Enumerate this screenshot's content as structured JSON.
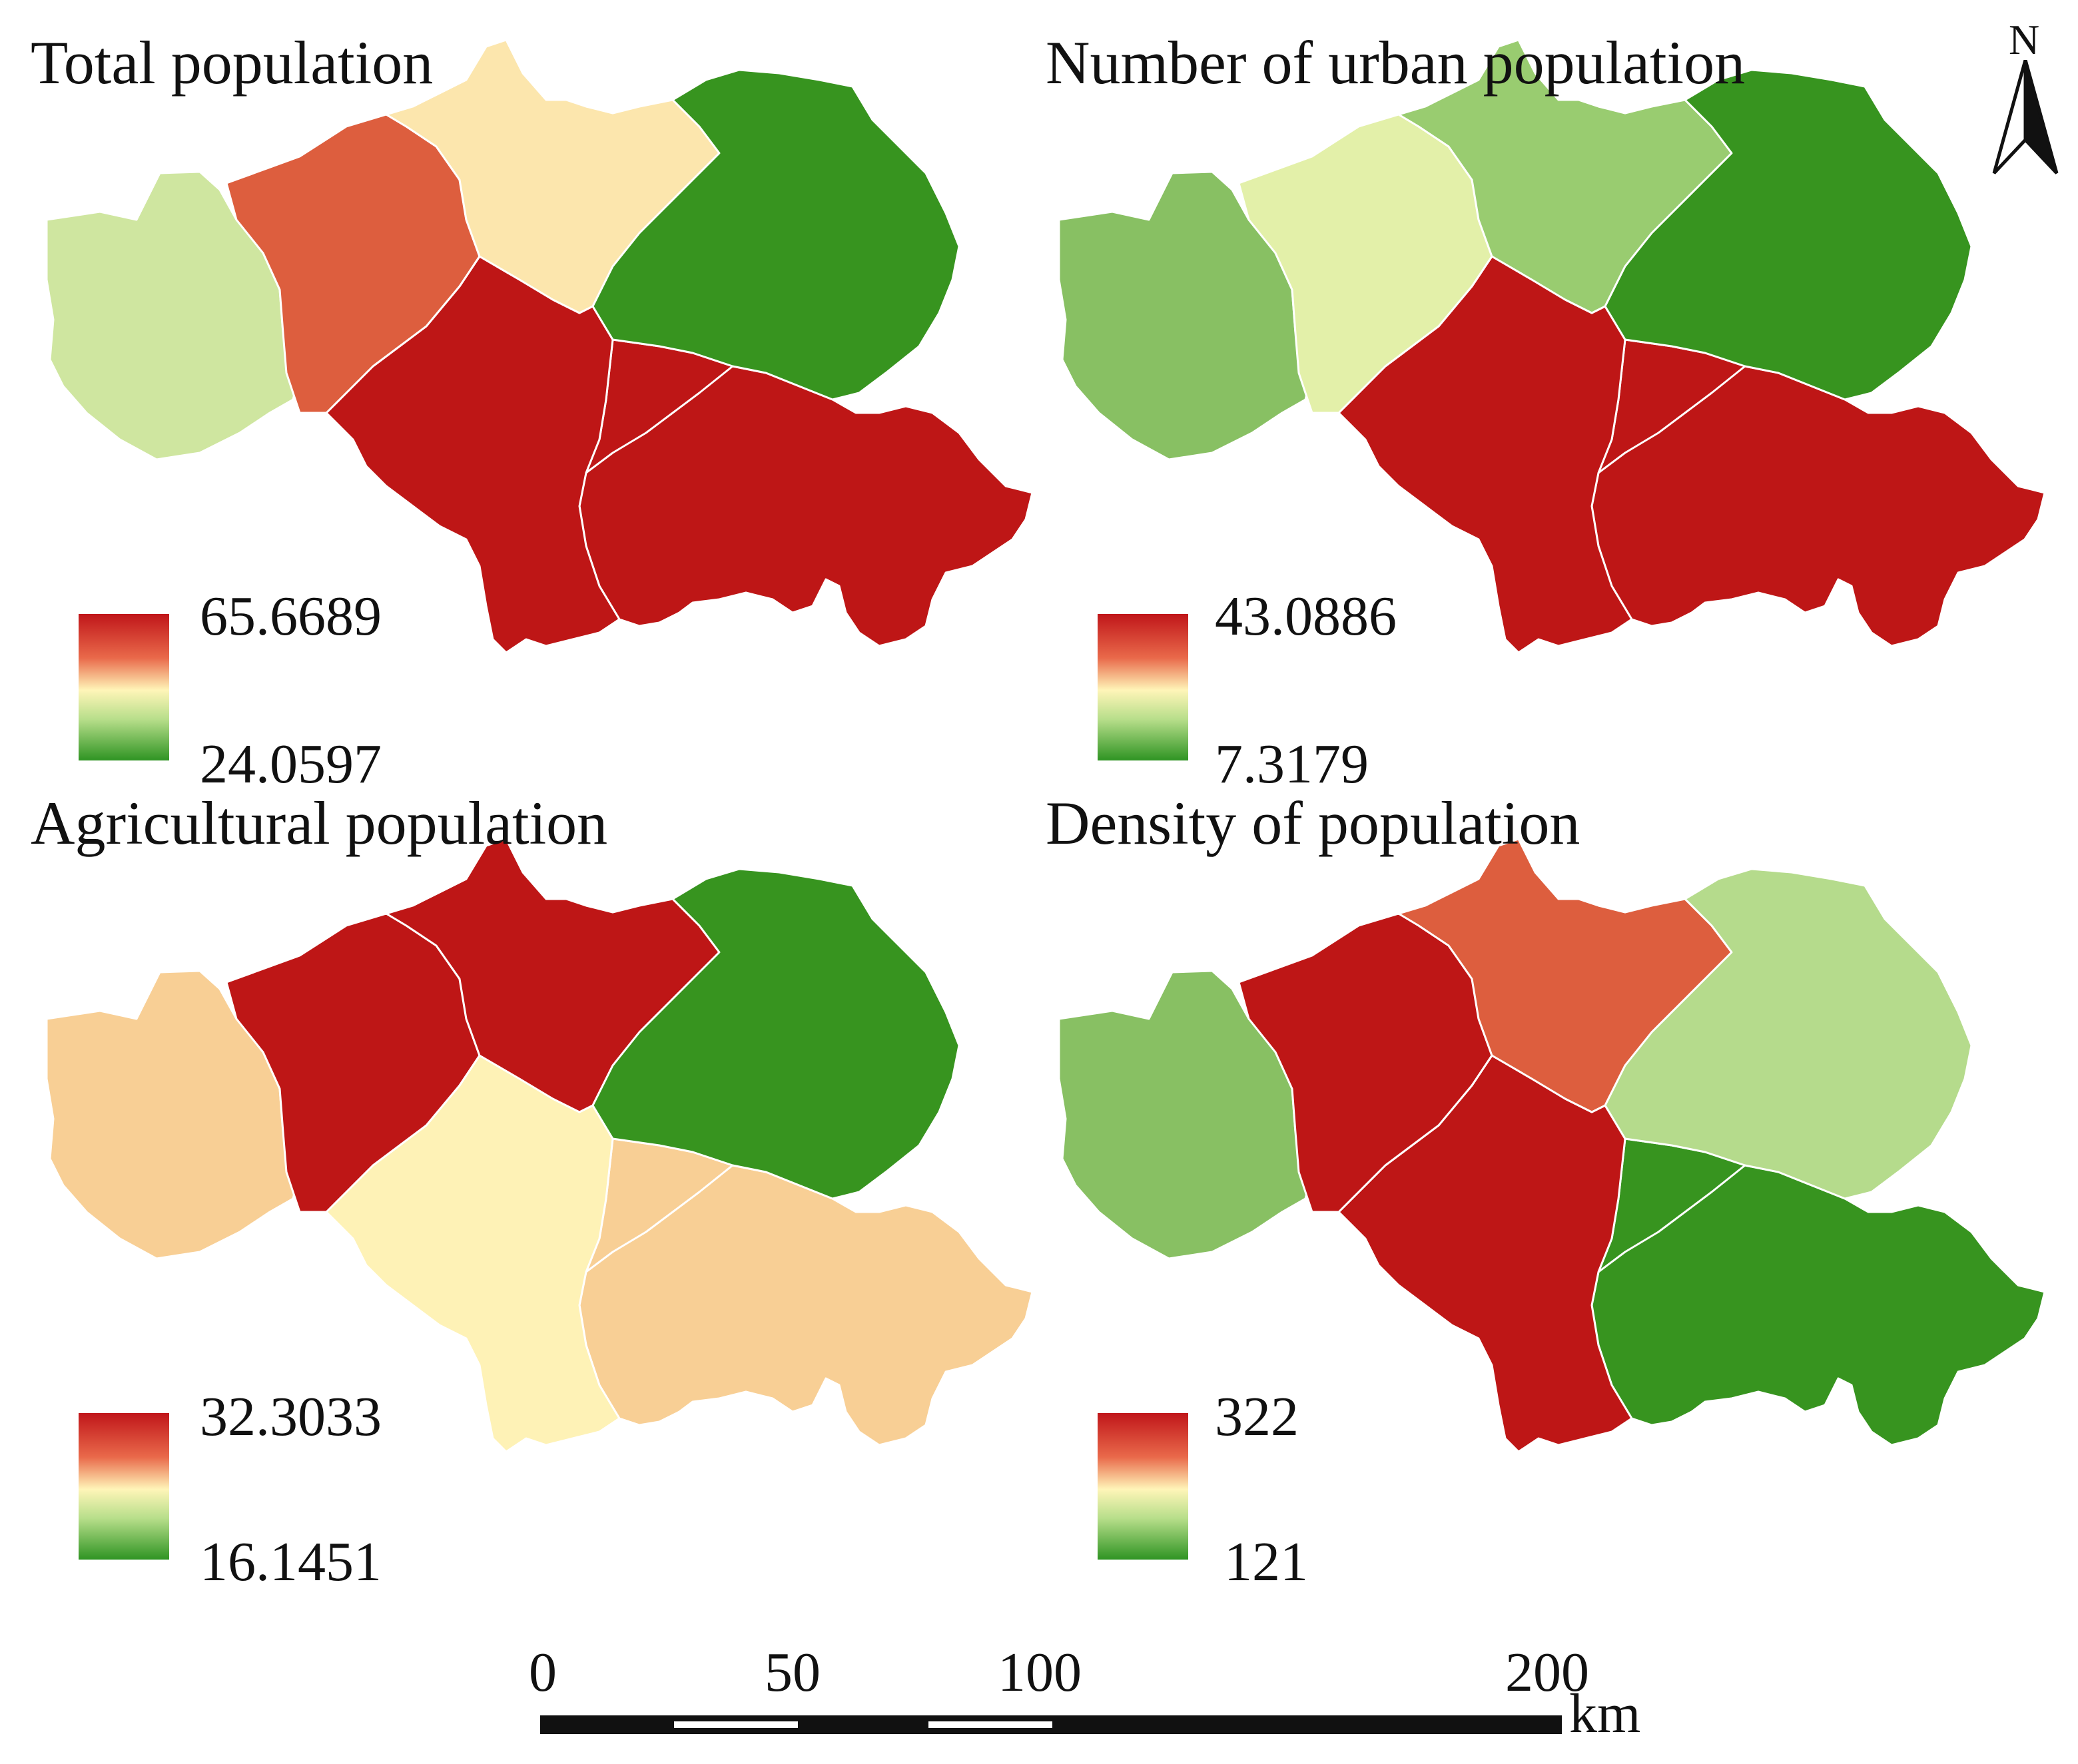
{
  "panels": [
    {
      "title": "Total population",
      "legend": {
        "max": "65.6689",
        "min": "24.0597"
      },
      "region_colors": {
        "west": "#cfe6a0",
        "west_central": "#dd5e3e",
        "north_central": "#fce6ad",
        "northeast": "#37941f",
        "south": "#be1616",
        "south_central": "#be1616",
        "southeast": "#be1616"
      }
    },
    {
      "title": "Number of urban population",
      "legend": {
        "max": "43.0886",
        "min": "7.3179"
      },
      "region_colors": {
        "west": "#88c063",
        "west_central": "#e3f0a9",
        "north_central": "#99cc70",
        "northeast": "#37941f",
        "south": "#be1616",
        "south_central": "#be1616",
        "southeast": "#be1616"
      }
    },
    {
      "title": "Agricultural population",
      "legend": {
        "max": "32.3033",
        "min": "16.1451"
      },
      "region_colors": {
        "west": "#f8cf95",
        "west_central": "#be1616",
        "north_central": "#be1616",
        "northeast": "#37941f",
        "south": "#f8cf95",
        "south_central": "#fef2b6",
        "southeast": "#f8cf95"
      }
    },
    {
      "title": "Density of population",
      "legend": {
        "max": "322",
        "min": "121"
      },
      "region_colors": {
        "west": "#88c063",
        "west_central": "#be1616",
        "north_central": "#dd5e3e",
        "northeast": "#b5db8c",
        "south": "#37941f",
        "south_central": "#be1616",
        "southeast": "#37941f"
      }
    }
  ],
  "north_arrow": {
    "label": "N"
  },
  "scale_bar": {
    "ticks": [
      "0",
      "50",
      "100",
      "200"
    ],
    "unit": "km"
  },
  "colors": {
    "legend_high": "#c0161a",
    "legend_mid": "#fff5b8",
    "legend_low": "#2f9423",
    "border": "#ffffff"
  }
}
